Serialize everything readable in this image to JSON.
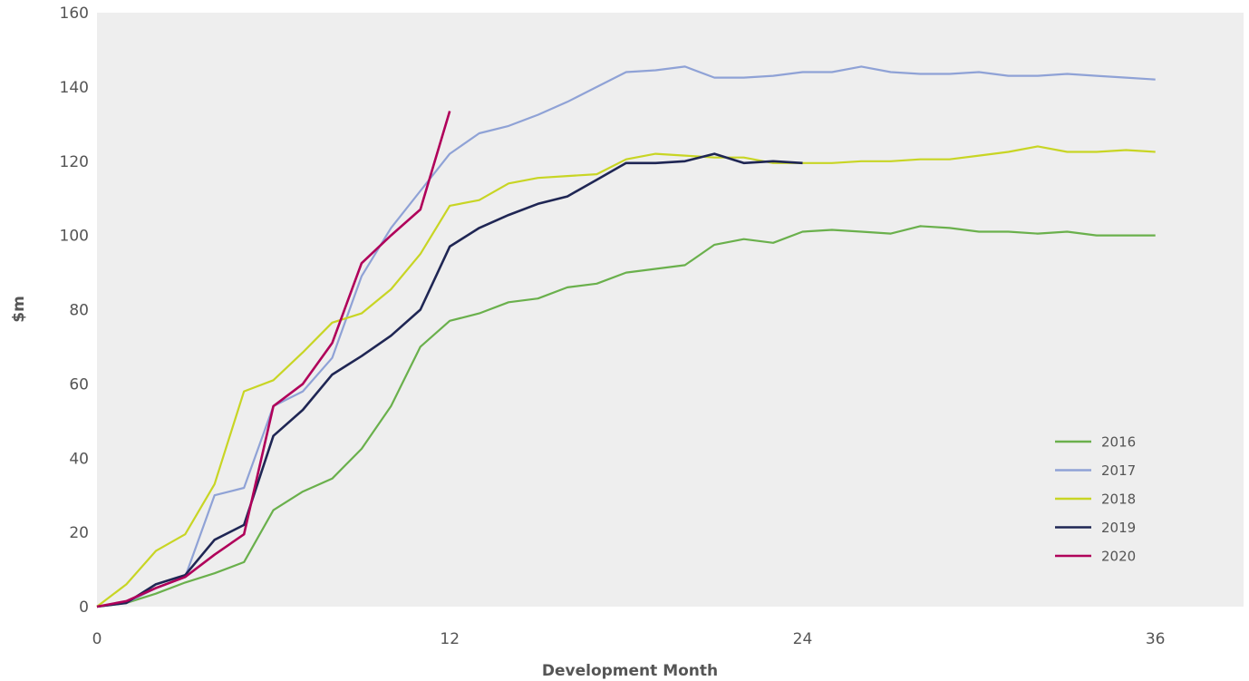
{
  "chart_data": {
    "type": "line",
    "title": "",
    "xlabel": "Development Month",
    "ylabel": "$m",
    "xlim": [
      0,
      39
    ],
    "ylim": [
      0,
      160
    ],
    "x_ticks": [
      0,
      12,
      24,
      36
    ],
    "y_ticks": [
      0,
      20,
      40,
      60,
      80,
      100,
      120,
      140,
      160
    ],
    "grid": false,
    "legend_position": "bottom-right",
    "background_color": "#eeeeee",
    "series": [
      {
        "name": "2016",
        "color": "#6ab04c",
        "x": [
          0,
          1,
          2,
          3,
          4,
          5,
          6,
          7,
          8,
          9,
          10,
          11,
          12,
          13,
          14,
          15,
          16,
          17,
          18,
          19,
          20,
          21,
          22,
          23,
          24,
          25,
          26,
          27,
          28,
          29,
          30,
          31,
          32,
          33,
          34,
          35,
          36
        ],
        "values": [
          0,
          1,
          3.5,
          6.5,
          9,
          12,
          26,
          31,
          34.5,
          42.5,
          54,
          70,
          77,
          79,
          82,
          83,
          86,
          87,
          90,
          91,
          92,
          97.5,
          99,
          98,
          101,
          101.5,
          101,
          100.5,
          102.5,
          102,
          101,
          101,
          100.5,
          101,
          100,
          100,
          100
        ]
      },
      {
        "name": "2017",
        "color": "#8fa2d6",
        "x": [
          0,
          1,
          2,
          3,
          4,
          5,
          6,
          7,
          8,
          9,
          10,
          11,
          12,
          13,
          14,
          15,
          16,
          17,
          18,
          19,
          20,
          21,
          22,
          23,
          24,
          25,
          26,
          27,
          28,
          29,
          30,
          31,
          32,
          33,
          34,
          35,
          36
        ],
        "values": [
          0,
          1,
          5,
          8,
          30,
          32,
          54,
          58,
          67,
          89,
          102,
          112,
          122,
          127.5,
          129.5,
          132.5,
          136,
          140,
          144,
          144.5,
          145.5,
          142.5,
          142.5,
          143,
          144,
          144,
          145.5,
          144,
          143.5,
          143.5,
          144,
          143,
          143,
          143.5,
          143,
          142.5,
          142
        ]
      },
      {
        "name": "2018",
        "color": "#c8d524",
        "x": [
          0,
          1,
          2,
          3,
          4,
          5,
          6,
          7,
          8,
          9,
          10,
          11,
          12,
          13,
          14,
          15,
          16,
          17,
          18,
          19,
          20,
          21,
          22,
          23,
          24,
          25,
          26,
          27,
          28,
          29,
          30,
          31,
          32,
          33,
          34,
          35,
          36
        ],
        "values": [
          0,
          6,
          15,
          19.5,
          33,
          58,
          61,
          68.5,
          76.5,
          79,
          85.5,
          95,
          108,
          109.5,
          114,
          115.5,
          116,
          116.5,
          120.5,
          122,
          121.5,
          121,
          121,
          119.5,
          119.5,
          119.5,
          120,
          120,
          120.5,
          120.5,
          121.5,
          122.5,
          124,
          122.5,
          122.5,
          123,
          122.5
        ]
      },
      {
        "name": "2019",
        "color": "#1f2654",
        "x": [
          0,
          1,
          2,
          3,
          4,
          5,
          6,
          7,
          8,
          9,
          10,
          11,
          12,
          13,
          14,
          15,
          16,
          17,
          18,
          19,
          20,
          21,
          22,
          23,
          24
        ],
        "values": [
          0,
          1,
          6,
          8.5,
          18,
          22,
          46,
          53,
          62.5,
          67.5,
          73,
          80,
          97,
          102,
          105.5,
          108.5,
          110.5,
          115,
          119.5,
          119.5,
          120,
          122,
          119.5,
          120,
          119.5
        ]
      },
      {
        "name": "2020",
        "color": "#b0005a",
        "x": [
          0,
          1,
          2,
          3,
          4,
          5,
          6,
          7,
          8,
          9,
          10,
          11,
          12
        ],
        "values": [
          0,
          1.5,
          5,
          8,
          14,
          19.5,
          54,
          60,
          71,
          92.5,
          100,
          107,
          133.5
        ]
      }
    ]
  }
}
